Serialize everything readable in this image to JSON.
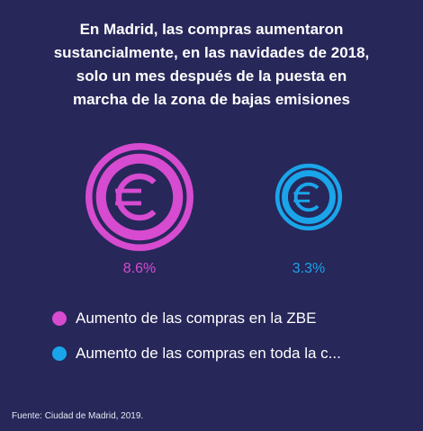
{
  "title_lines": [
    "En Madrid, las compras aumentaron",
    "sustancialmente, en las navidades de 2018,",
    "solo un mes después de la puesta en",
    "marcha de la zona de bajas emisiones"
  ],
  "chart_data": {
    "type": "bubble",
    "series": [
      {
        "name": "Aumento de las compras en la ZBE",
        "value": 8.6,
        "label": "8.6%",
        "color": "#d74bd0",
        "icon": "euro-icon"
      },
      {
        "name": "Aumento de las compras en toda la c...",
        "value": 3.3,
        "label": "3.3%",
        "color": "#1aa5ea",
        "icon": "euro-icon"
      }
    ]
  },
  "source": "Fuente: Ciudad de  Madrid, 2019."
}
